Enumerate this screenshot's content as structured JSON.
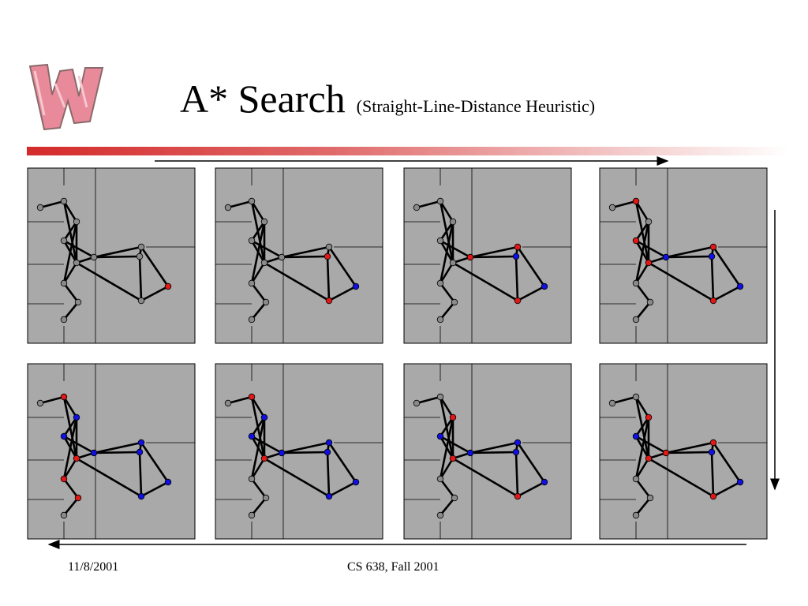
{
  "slide": {
    "title": "A* Search",
    "subtitle": "(Straight-Line-Distance Heuristic)",
    "footer_date": "11/8/2001",
    "footer_course": "CS 638, Fall 2001"
  },
  "colors": {
    "panel_bg": "#a9a9a9",
    "closed_node": "#1010e0",
    "open_node": "#e01818",
    "unvisited_node": "#8a8a8a",
    "title_bar": "#d42a2a",
    "logo": "#e88a9a"
  },
  "graph": {
    "nodes": [
      "n1",
      "n2",
      "n3",
      "n4",
      "n5",
      "n6",
      "n7",
      "n8",
      "n9",
      "n10",
      "n11",
      "n12",
      "n13"
    ],
    "edges": [
      [
        "n1",
        "n2"
      ],
      [
        "n2",
        "n3"
      ],
      [
        "n3",
        "n4"
      ],
      [
        "n3",
        "n5"
      ],
      [
        "n2",
        "n5"
      ],
      [
        "n4",
        "n5"
      ],
      [
        "n4",
        "n6"
      ],
      [
        "n5",
        "n6"
      ],
      [
        "n5",
        "n7"
      ],
      [
        "n7",
        "n8"
      ],
      [
        "n6",
        "n9"
      ],
      [
        "n6",
        "n10"
      ],
      [
        "n9",
        "n10"
      ],
      [
        "n9",
        "n11"
      ],
      [
        "n10",
        "n12"
      ],
      [
        "n5",
        "n12"
      ],
      [
        "n11",
        "n12"
      ],
      [
        "n3",
        "n7"
      ],
      [
        "n8",
        "n13"
      ]
    ]
  },
  "steps": [
    {
      "n1": "u",
      "n2": "u",
      "n3": "u",
      "n4": "u",
      "n5": "u",
      "n6": "u",
      "n7": "u",
      "n8": "u",
      "n9": "u",
      "n10": "u",
      "n11": "o",
      "n12": "u",
      "n13": "u"
    },
    {
      "n1": "u",
      "n2": "u",
      "n3": "u",
      "n4": "u",
      "n5": "u",
      "n6": "u",
      "n7": "u",
      "n8": "u",
      "n9": "u",
      "n10": "o",
      "n11": "c",
      "n12": "o",
      "n13": "u"
    },
    {
      "n1": "u",
      "n2": "u",
      "n3": "u",
      "n4": "u",
      "n5": "u",
      "n6": "o",
      "n7": "u",
      "n8": "u",
      "n9": "o",
      "n10": "c",
      "n11": "c",
      "n12": "o",
      "n13": "u"
    },
    {
      "n1": "u",
      "n2": "o",
      "n3": "u",
      "n4": "o",
      "n5": "o",
      "n6": "c",
      "n7": "u",
      "n8": "u",
      "n9": "o",
      "n10": "c",
      "n11": "c",
      "n12": "o",
      "n13": "u"
    },
    {
      "n1": "u",
      "n2": "o",
      "n3": "c",
      "n4": "c",
      "n5": "o",
      "n6": "c",
      "n7": "o",
      "n8": "o",
      "n9": "c",
      "n10": "c",
      "n11": "c",
      "n12": "c",
      "n13": "u"
    },
    {
      "n1": "u",
      "n2": "o",
      "n3": "c",
      "n4": "c",
      "n5": "o",
      "n6": "c",
      "n7": "u",
      "n8": "u",
      "n9": "c",
      "n10": "c",
      "n11": "c",
      "n12": "c",
      "n13": "u"
    },
    {
      "n1": "u",
      "n2": "u",
      "n3": "o",
      "n4": "c",
      "n5": "o",
      "n6": "c",
      "n7": "u",
      "n8": "u",
      "n9": "c",
      "n10": "c",
      "n11": "c",
      "n12": "o",
      "n13": "u"
    },
    {
      "n1": "u",
      "n2": "u",
      "n3": "o",
      "n4": "c",
      "n5": "o",
      "n6": "o",
      "n7": "u",
      "n8": "u",
      "n9": "o",
      "n10": "c",
      "n11": "c",
      "n12": "o",
      "n13": "u"
    }
  ]
}
